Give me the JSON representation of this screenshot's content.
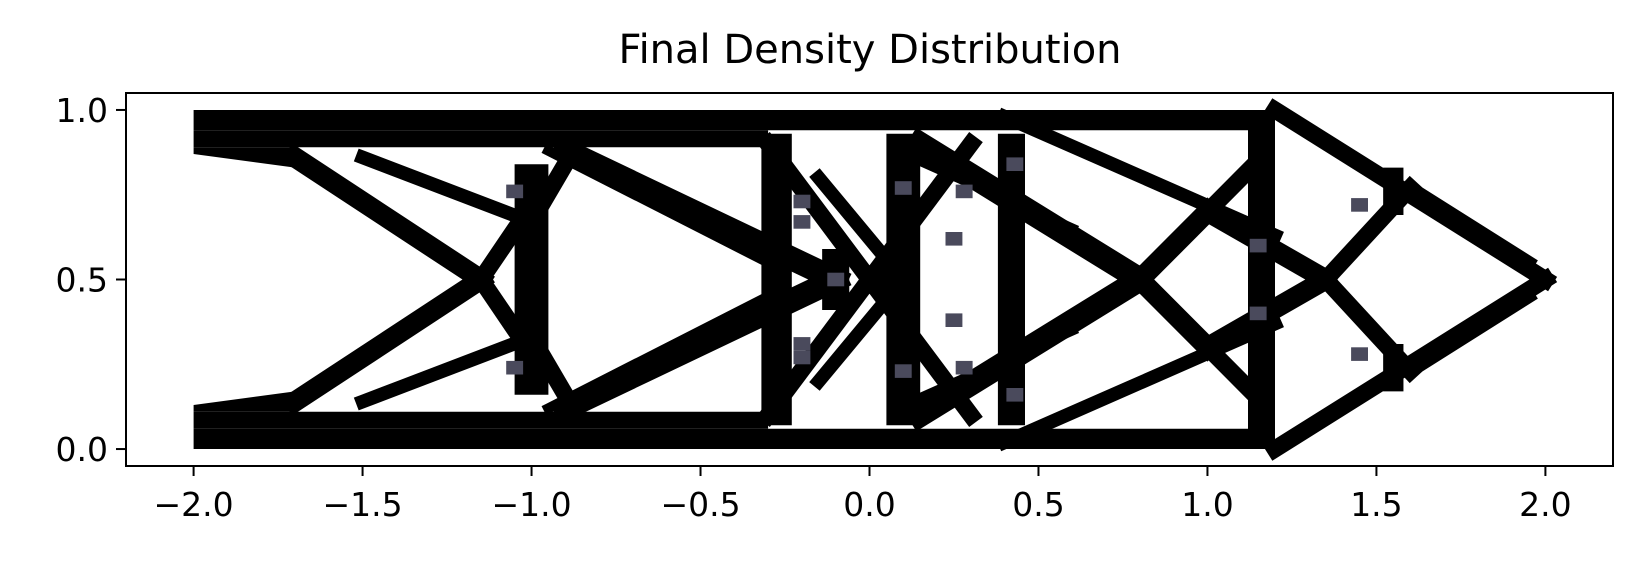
{
  "chart_data": {
    "type": "heatmap",
    "title": "Final Density Distribution",
    "xlabel": "",
    "ylabel": "",
    "xlim": [
      -2.2,
      2.2
    ],
    "ylim": [
      -0.05,
      1.05
    ],
    "xticks": [
      {
        "value": -2.0,
        "label": "−2.0"
      },
      {
        "value": -1.5,
        "label": "−1.5"
      },
      {
        "value": -1.0,
        "label": "−1.0"
      },
      {
        "value": -0.5,
        "label": "−0.5"
      },
      {
        "value": 0.0,
        "label": "0.0"
      },
      {
        "value": 0.5,
        "label": "0.5"
      },
      {
        "value": 1.0,
        "label": "1.0"
      },
      {
        "value": 1.5,
        "label": "1.5"
      },
      {
        "value": 2.0,
        "label": "2.0"
      }
    ],
    "yticks": [
      {
        "value": 0.0,
        "label": "0.0"
      },
      {
        "value": 0.5,
        "label": "0.5"
      },
      {
        "value": 1.0,
        "label": "1.0"
      }
    ],
    "grid": false,
    "colors": {
      "solid": "#000000",
      "intermediate": "#4a4a5c",
      "void": "#ffffff"
    },
    "solid_regions": [
      {
        "name": "top-chord",
        "points": [
          [
            -2.0,
            1.0
          ],
          [
            1.2,
            1.0
          ],
          [
            1.2,
            0.94
          ],
          [
            -2.0,
            0.94
          ]
        ]
      },
      {
        "name": "top-chord-thick",
        "points": [
          [
            -2.0,
            0.94
          ],
          [
            -0.3,
            0.94
          ],
          [
            -0.3,
            0.89
          ],
          [
            -2.0,
            0.89
          ]
        ]
      },
      {
        "name": "top-left-corner",
        "points": [
          [
            -2.0,
            0.89
          ],
          [
            -1.7,
            0.89
          ],
          [
            -1.7,
            0.83
          ],
          [
            -2.0,
            0.87
          ]
        ]
      },
      {
        "name": "bottom-chord",
        "points": [
          [
            -2.0,
            0.0
          ],
          [
            1.2,
            0.0
          ],
          [
            1.2,
            0.06
          ],
          [
            -2.0,
            0.06
          ]
        ]
      },
      {
        "name": "bottom-chord-thick",
        "points": [
          [
            -2.0,
            0.06
          ],
          [
            -0.3,
            0.06
          ],
          [
            -0.3,
            0.11
          ],
          [
            -2.0,
            0.11
          ]
        ]
      },
      {
        "name": "bottom-left-corner",
        "points": [
          [
            -2.0,
            0.11
          ],
          [
            -1.7,
            0.11
          ],
          [
            -1.7,
            0.17
          ],
          [
            -2.0,
            0.13
          ]
        ]
      },
      {
        "name": "vertical-left-a",
        "points": [
          [
            -1.05,
            0.84
          ],
          [
            -0.95,
            0.84
          ],
          [
            -0.95,
            0.16
          ],
          [
            -1.05,
            0.16
          ]
        ]
      },
      {
        "name": "vertical-mid-a",
        "points": [
          [
            -0.32,
            0.93
          ],
          [
            -0.23,
            0.93
          ],
          [
            -0.23,
            0.07
          ],
          [
            -0.32,
            0.07
          ]
        ]
      },
      {
        "name": "vertical-mid-b",
        "points": [
          [
            0.05,
            0.93
          ],
          [
            0.15,
            0.93
          ],
          [
            0.15,
            0.07
          ],
          [
            0.05,
            0.07
          ]
        ]
      },
      {
        "name": "vertical-right-a",
        "points": [
          [
            0.38,
            0.93
          ],
          [
            0.46,
            0.93
          ],
          [
            0.46,
            0.07
          ],
          [
            0.38,
            0.07
          ]
        ]
      },
      {
        "name": "vertical-right-b",
        "points": [
          [
            1.12,
            1.0
          ],
          [
            1.2,
            1.0
          ],
          [
            1.2,
            0.0
          ],
          [
            1.12,
            0.0
          ]
        ]
      }
    ],
    "solid_members": [
      {
        "name": "diag-left-upper-1",
        "from": [
          -1.7,
          0.86
        ],
        "to": [
          -1.15,
          0.5
        ],
        "width": 0.06
      },
      {
        "name": "diag-left-lower-1",
        "from": [
          -1.7,
          0.14
        ],
        "to": [
          -1.15,
          0.5
        ],
        "width": 0.06
      },
      {
        "name": "diag-left-upper-2",
        "from": [
          -1.5,
          0.86
        ],
        "to": [
          -1.0,
          0.67
        ],
        "width": 0.04
      },
      {
        "name": "diag-left-lower-2",
        "from": [
          -1.5,
          0.14
        ],
        "to": [
          -1.0,
          0.33
        ],
        "width": 0.04
      },
      {
        "name": "diag-x1-a",
        "from": [
          -1.15,
          0.5
        ],
        "to": [
          -1.0,
          0.72
        ],
        "width": 0.05
      },
      {
        "name": "diag-x1-b",
        "from": [
          -1.15,
          0.5
        ],
        "to": [
          -1.0,
          0.28
        ],
        "width": 0.05
      },
      {
        "name": "diag-1",
        "from": [
          -1.0,
          0.33
        ],
        "to": [
          -0.9,
          0.16
        ],
        "width": 0.05
      },
      {
        "name": "diag-2",
        "from": [
          -1.0,
          0.67
        ],
        "to": [
          -0.9,
          0.84
        ],
        "width": 0.05
      },
      {
        "name": "diag-3",
        "from": [
          -0.9,
          0.88
        ],
        "to": [
          -0.1,
          0.5
        ],
        "width": 0.07
      },
      {
        "name": "diag-4",
        "from": [
          -0.9,
          0.12
        ],
        "to": [
          -0.1,
          0.5
        ],
        "width": 0.07
      },
      {
        "name": "diag-5",
        "from": [
          -0.95,
          0.12
        ],
        "to": [
          -0.3,
          0.45
        ],
        "width": 0.03
      },
      {
        "name": "diag-6",
        "from": [
          -0.95,
          0.88
        ],
        "to": [
          -0.3,
          0.55
        ],
        "width": 0.03
      },
      {
        "name": "diag-7",
        "from": [
          -0.3,
          0.9
        ],
        "to": [
          0.3,
          0.1
        ],
        "width": 0.05
      },
      {
        "name": "diag-8",
        "from": [
          -0.3,
          0.1
        ],
        "to": [
          0.3,
          0.9
        ],
        "width": 0.05
      },
      {
        "name": "diag-9",
        "from": [
          -0.15,
          0.8
        ],
        "to": [
          0.1,
          0.5
        ],
        "width": 0.04
      },
      {
        "name": "diag-10",
        "from": [
          -0.15,
          0.2
        ],
        "to": [
          0.1,
          0.5
        ],
        "width": 0.04
      },
      {
        "name": "diag-11",
        "from": [
          0.15,
          0.9
        ],
        "to": [
          0.8,
          0.5
        ],
        "width": 0.07
      },
      {
        "name": "diag-12",
        "from": [
          0.15,
          0.1
        ],
        "to": [
          0.8,
          0.5
        ],
        "width": 0.07
      },
      {
        "name": "diag-13",
        "from": [
          0.15,
          0.85
        ],
        "to": [
          0.6,
          0.65
        ],
        "width": 0.03
      },
      {
        "name": "diag-14",
        "from": [
          0.15,
          0.15
        ],
        "to": [
          0.6,
          0.35
        ],
        "width": 0.03
      },
      {
        "name": "diag-15",
        "from": [
          0.8,
          0.5
        ],
        "to": [
          1.0,
          0.7
        ],
        "width": 0.06
      },
      {
        "name": "diag-16",
        "from": [
          0.8,
          0.5
        ],
        "to": [
          1.0,
          0.3
        ],
        "width": 0.06
      },
      {
        "name": "diag-17",
        "from": [
          0.4,
          0.98
        ],
        "to": [
          1.2,
          0.63
        ],
        "width": 0.04
      },
      {
        "name": "diag-18",
        "from": [
          0.4,
          0.02
        ],
        "to": [
          1.2,
          0.37
        ],
        "width": 0.04
      },
      {
        "name": "diag-19",
        "from": [
          1.0,
          0.7
        ],
        "to": [
          1.35,
          0.5
        ],
        "width": 0.06
      },
      {
        "name": "diag-20",
        "from": [
          1.0,
          0.3
        ],
        "to": [
          1.35,
          0.5
        ],
        "width": 0.06
      },
      {
        "name": "diag-21",
        "from": [
          1.0,
          0.7
        ],
        "to": [
          1.15,
          0.85
        ],
        "width": 0.05
      },
      {
        "name": "diag-22",
        "from": [
          1.0,
          0.3
        ],
        "to": [
          1.15,
          0.15
        ],
        "width": 0.05
      },
      {
        "name": "diag-23",
        "from": [
          1.2,
          1.0
        ],
        "to": [
          2.0,
          0.5
        ],
        "width": 0.05
      },
      {
        "name": "diag-24",
        "from": [
          1.2,
          0.0
        ],
        "to": [
          2.0,
          0.5
        ],
        "width": 0.05
      },
      {
        "name": "diag-25",
        "from": [
          1.35,
          0.5
        ],
        "to": [
          1.6,
          0.77
        ],
        "width": 0.05
      },
      {
        "name": "diag-26",
        "from": [
          1.35,
          0.5
        ],
        "to": [
          1.6,
          0.23
        ],
        "width": 0.05
      },
      {
        "name": "diag-27",
        "from": [
          1.6,
          0.77
        ],
        "to": [
          1.95,
          0.55
        ],
        "width": 0.04
      },
      {
        "name": "diag-28",
        "from": [
          1.6,
          0.23
        ],
        "to": [
          1.95,
          0.45
        ],
        "width": 0.04
      },
      {
        "name": "vertical-short-1",
        "from": [
          1.55,
          0.8
        ],
        "to": [
          1.55,
          0.72
        ],
        "width": 0.06
      },
      {
        "name": "vertical-short-2",
        "from": [
          1.55,
          0.2
        ],
        "to": [
          1.55,
          0.28
        ],
        "width": 0.06
      },
      {
        "name": "node-1",
        "from": [
          -0.1,
          0.55
        ],
        "to": [
          -0.1,
          0.45
        ],
        "width": 0.08
      },
      {
        "name": "node-2",
        "from": [
          0.05,
          0.56
        ],
        "to": [
          0.05,
          0.44
        ],
        "width": 0.06
      }
    ],
    "intermediate_cells": [
      [
        -0.2,
        0.73
      ],
      [
        -0.2,
        0.67
      ],
      [
        -0.2,
        0.31
      ],
      [
        -0.2,
        0.27
      ],
      [
        0.1,
        0.77
      ],
      [
        0.1,
        0.23
      ],
      [
        0.28,
        0.76
      ],
      [
        0.28,
        0.24
      ],
      [
        0.25,
        0.62
      ],
      [
        0.25,
        0.38
      ],
      [
        0.43,
        0.84
      ],
      [
        0.43,
        0.16
      ],
      [
        -0.1,
        0.5
      ],
      [
        1.45,
        0.72
      ],
      [
        1.45,
        0.28
      ],
      [
        1.15,
        0.6
      ],
      [
        1.15,
        0.4
      ],
      [
        -1.05,
        0.76
      ],
      [
        -1.05,
        0.24
      ]
    ]
  }
}
